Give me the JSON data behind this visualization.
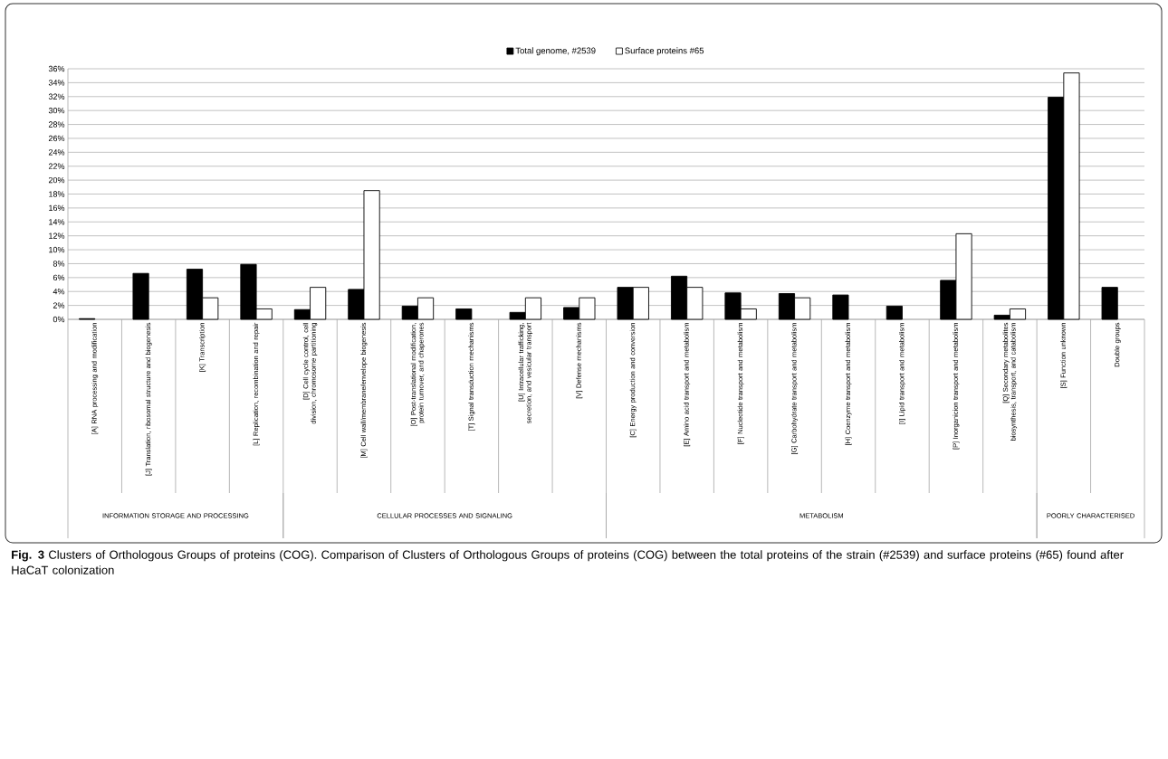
{
  "chart_data": {
    "type": "bar",
    "categories": [
      "[A] RNA processing and modification",
      "[J] Translation, ribosomal structure and biogenesis",
      "[K] Transcription",
      "[L] Replication, recombination and repair",
      "[D] Cell cycle control, cell division, chromosome partitioning",
      "[M] Cell wall/membrane/envelope biogenesis",
      "[O] Post-translational modification, protein turnover, and chaperones",
      "[T] Signal transduction mechanisms",
      "[U] Intracellular trafficking, secretion, and vesicular transport",
      "[V] Defense mechanisms",
      "[C] Energy production and conversion",
      "[E] Amino acid transport and metabolism",
      "[F] Nucleotide transport and metabolism",
      "[G] Carbohydrate transport and metabolism",
      "[H] Coenzyme transport and metabolism",
      "[I] Lipid transport and metabolism",
      "[P] Inorganicion transport and metabolism",
      "[Q] Secondary metabolites biosynthesis, transport, and catabolism",
      "[S] Function unknown",
      "Double groups"
    ],
    "series": [
      {
        "name": "Total genome, #2539",
        "color": "#000000",
        "values": [
          0.1,
          6.6,
          7.2,
          7.9,
          1.4,
          4.3,
          1.9,
          1.5,
          1.0,
          1.7,
          4.6,
          6.2,
          3.8,
          3.7,
          3.5,
          1.9,
          5.6,
          0.6,
          31.9,
          4.6
        ]
      },
      {
        "name": "Surface proteins #65",
        "color": "#ffffff",
        "values": [
          null,
          null,
          3.1,
          1.5,
          4.6,
          18.5,
          3.1,
          null,
          3.1,
          3.1,
          4.6,
          4.6,
          1.5,
          3.1,
          null,
          null,
          12.3,
          1.5,
          35.4,
          null
        ]
      }
    ],
    "ylim": [
      0,
      36
    ],
    "yticks": [
      {
        "value": 0,
        "label": "0%"
      },
      {
        "value": 2,
        "label": "2%"
      },
      {
        "value": 4,
        "label": "4%"
      },
      {
        "value": 6,
        "label": "6%"
      },
      {
        "value": 8,
        "label": "8%"
      },
      {
        "value": 10,
        "label": "10%"
      },
      {
        "value": 12,
        "label": "12%"
      },
      {
        "value": 14,
        "label": "14%"
      },
      {
        "value": 16,
        "label": "16%"
      },
      {
        "value": 18,
        "label": "18%"
      },
      {
        "value": 20,
        "label": "20%"
      },
      {
        "value": 22,
        "label": "22%"
      },
      {
        "value": 24,
        "label": "24%"
      },
      {
        "value": 26,
        "label": "26%"
      },
      {
        "value": 28,
        "label": "28%"
      },
      {
        "value": 30,
        "label": "30%"
      },
      {
        "value": 32,
        "label": "32%"
      },
      {
        "value": 34,
        "label": "34%"
      },
      {
        "value": 36,
        "label": "36%"
      }
    ],
    "grid": "y",
    "legend": "top",
    "annotations": [
      "INFORMATION STORAGE AND PROCESSING",
      "CELLULAR PROCESSES AND SIGNALING",
      "METABOLISM",
      "POORLY CHARACTERISED",
      "**Fig. 3** Clusters of Orthologous Groups of proteins (COG). Comparison of Clusters of Orthologous Groups of proteins (COG) between the total proteins of the strain (#2539) and surface proteins (#65) found after HaCaT colonization"
    ]
  }
}
